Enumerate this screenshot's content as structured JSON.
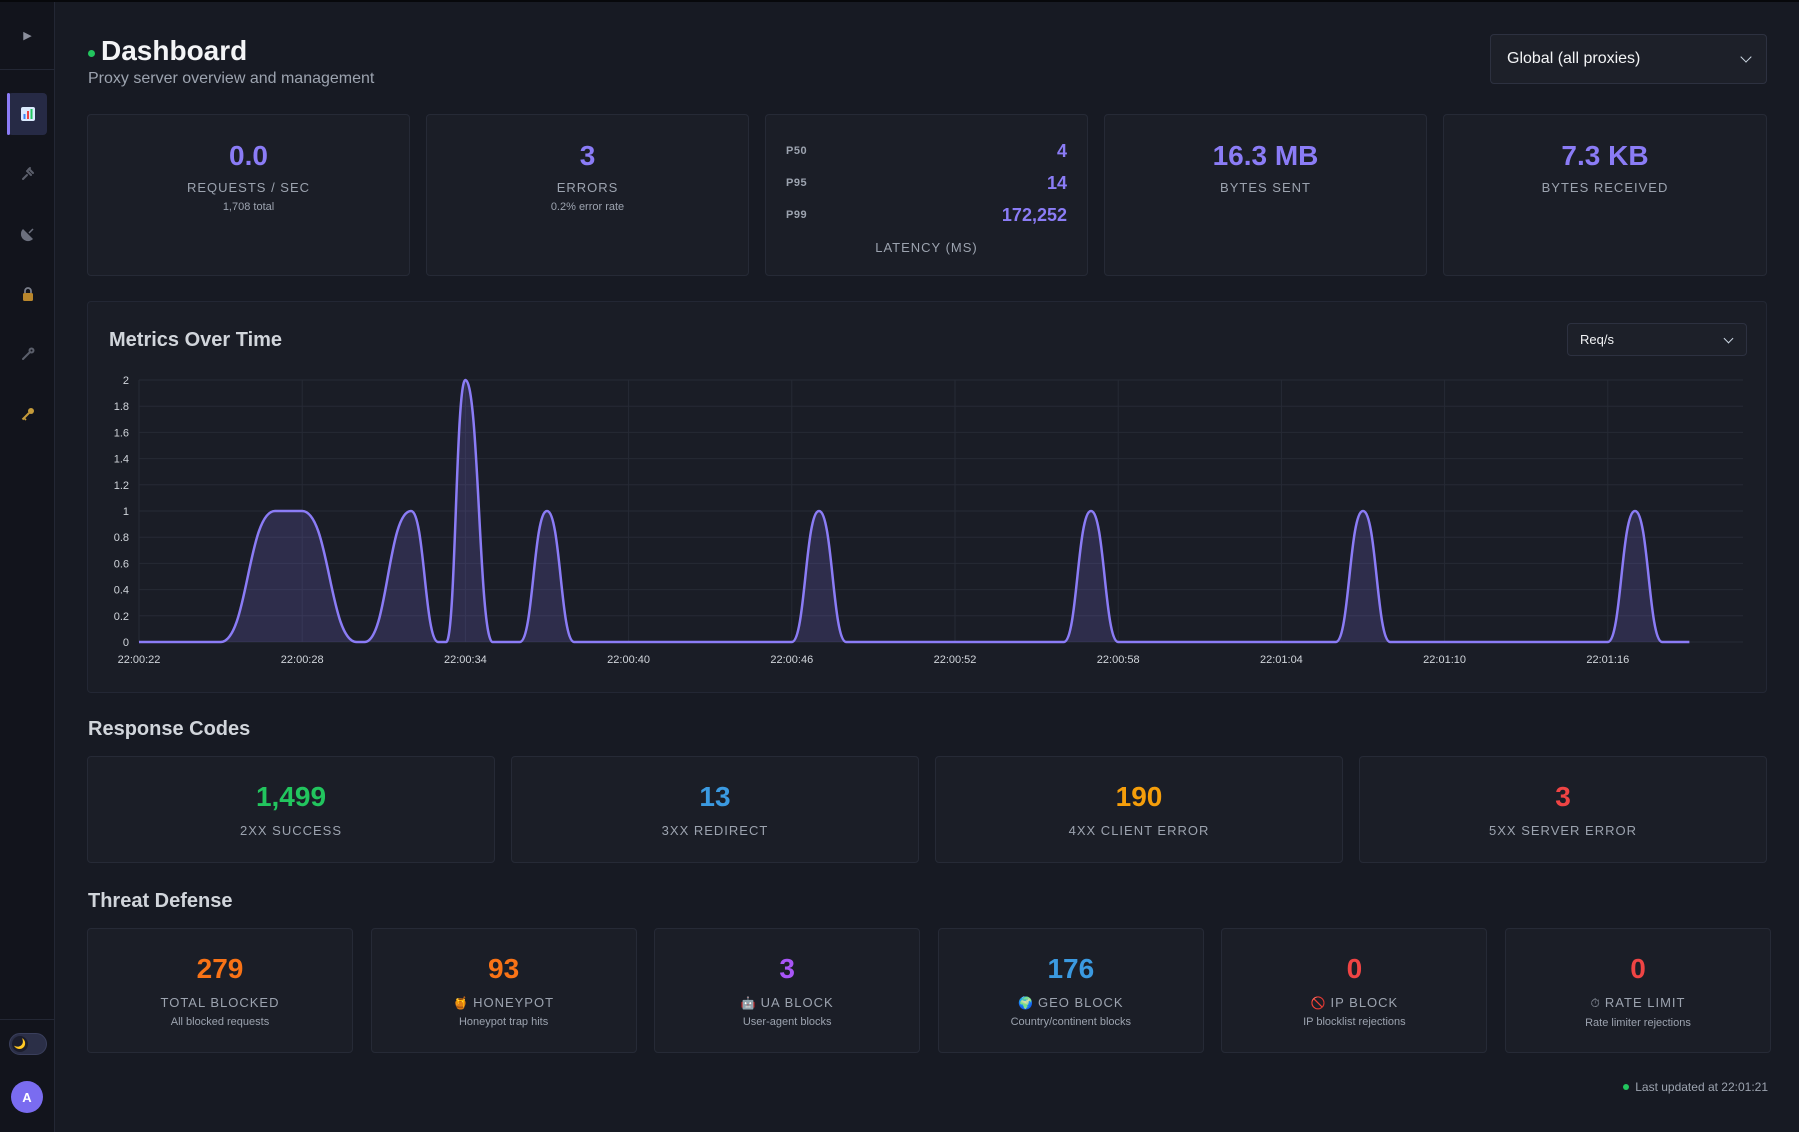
{
  "colors": {
    "accent": "#8b7cf6",
    "success": "#22c55e",
    "redirect": "#3b9ae1",
    "client_error": "#f59e0b",
    "server_error": "#ef4444",
    "orange": "#f97316",
    "purple": "#a855f7"
  },
  "sidebar": {
    "toggle_icon": "▶",
    "items": [
      {
        "name": "dashboard",
        "icon": "chart-icon",
        "active": true
      },
      {
        "name": "proxies",
        "icon": "plug-icon"
      },
      {
        "name": "routes",
        "icon": "satellite-icon"
      },
      {
        "name": "security",
        "icon": "lock-icon"
      },
      {
        "name": "tools",
        "icon": "wrench-icon"
      },
      {
        "name": "keys",
        "icon": "key-icon"
      }
    ],
    "theme_icon": "🌙",
    "avatar_initial": "A"
  },
  "header": {
    "title": "Dashboard",
    "subtitle": "Proxy server overview and management",
    "proxy_select": "Global (all proxies)"
  },
  "stats": {
    "requests": {
      "value": "0.0",
      "label": "REQUESTS / SEC",
      "sub": "1,708 total"
    },
    "errors": {
      "value": "3",
      "label": "ERRORS",
      "sub": "0.2% error rate"
    },
    "latency": {
      "p50_label": "P50",
      "p50": "4",
      "p95_label": "P95",
      "p95": "14",
      "p99_label": "P99",
      "p99": "172,252",
      "label": "LATENCY (MS)"
    },
    "bytes_sent": {
      "value": "16.3 MB",
      "label": "BYTES SENT"
    },
    "bytes_received": {
      "value": "7.3 KB",
      "label": "BYTES RECEIVED"
    }
  },
  "chart_panel": {
    "title": "Metrics Over Time",
    "metric_select": "Req/s"
  },
  "chart_data": {
    "type": "area",
    "title": "",
    "xlabel": "",
    "ylabel": "",
    "ylim": [
      0,
      2
    ],
    "yticks": [
      "0",
      "0.2",
      "0.4",
      "0.6",
      "0.8",
      "1",
      "1.2",
      "1.4",
      "1.6",
      "1.8",
      "2"
    ],
    "xticks": [
      "22:00:22",
      "22:00:28",
      "22:00:34",
      "22:00:40",
      "22:00:46",
      "22:00:52",
      "22:00:58",
      "22:01:04",
      "22:01:10",
      "22:01:16"
    ],
    "grid": true,
    "series": [
      {
        "values": [
          {
            "t": "22:00:22",
            "y": 0
          },
          {
            "t": "22:00:25",
            "y": 0
          },
          {
            "t": "22:00:27",
            "y": 1
          },
          {
            "t": "22:00:28",
            "y": 1
          },
          {
            "t": "22:00:30",
            "y": 0
          },
          {
            "t": "22:00:30",
            "y": 0
          },
          {
            "t": "22:00:32",
            "y": 1
          },
          {
            "t": "22:00:33",
            "y": 0
          },
          {
            "t": "22:00:33",
            "y": 0
          },
          {
            "t": "22:00:34",
            "y": 2
          },
          {
            "t": "22:00:35",
            "y": 0
          },
          {
            "t": "22:00:36",
            "y": 0
          },
          {
            "t": "22:00:37",
            "y": 1
          },
          {
            "t": "22:00:38",
            "y": 0
          },
          {
            "t": "22:00:46",
            "y": 0
          },
          {
            "t": "22:00:47",
            "y": 1
          },
          {
            "t": "22:00:48",
            "y": 0
          },
          {
            "t": "22:00:56",
            "y": 0
          },
          {
            "t": "22:00:57",
            "y": 1
          },
          {
            "t": "22:00:58",
            "y": 0
          },
          {
            "t": "22:01:06",
            "y": 0
          },
          {
            "t": "22:01:07",
            "y": 1
          },
          {
            "t": "22:01:08",
            "y": 0
          },
          {
            "t": "22:01:16",
            "y": 0
          },
          {
            "t": "22:01:17",
            "y": 1
          },
          {
            "t": "22:01:18",
            "y": 0
          },
          {
            "t": "22:01:19",
            "y": 0
          }
        ]
      }
    ]
  },
  "response_codes": {
    "title": "Response Codes",
    "items": [
      {
        "value": "1,499",
        "label": "2XX SUCCESS",
        "color": "#22c55e"
      },
      {
        "value": "13",
        "label": "3XX REDIRECT",
        "color": "#3b9ae1"
      },
      {
        "value": "190",
        "label": "4XX CLIENT ERROR",
        "color": "#f59e0b"
      },
      {
        "value": "3",
        "label": "5XX SERVER ERROR",
        "color": "#ef4444"
      }
    ]
  },
  "threat_defense": {
    "title": "Threat Defense",
    "items": [
      {
        "value": "279",
        "icon": "",
        "label": "TOTAL BLOCKED",
        "sub": "All blocked requests",
        "color": "#f97316"
      },
      {
        "value": "93",
        "icon": "🍯",
        "label": "HONEYPOT",
        "sub": "Honeypot trap hits",
        "color": "#f97316"
      },
      {
        "value": "3",
        "icon": "🤖",
        "label": "UA BLOCK",
        "sub": "User-agent blocks",
        "color": "#a855f7"
      },
      {
        "value": "176",
        "icon": "🌍",
        "label": "GEO BLOCK",
        "sub": "Country/continent blocks",
        "color": "#3b9ae1"
      },
      {
        "value": "0",
        "icon": "🚫",
        "label": "IP BLOCK",
        "sub": "IP blocklist rejections",
        "color": "#ef4444"
      },
      {
        "value": "0",
        "icon": "⏱",
        "label": "RATE LIMIT",
        "sub": "Rate limiter rejections",
        "color": "#ef4444"
      }
    ]
  },
  "footer": {
    "last_updated": "Last updated at 22:01:21"
  }
}
